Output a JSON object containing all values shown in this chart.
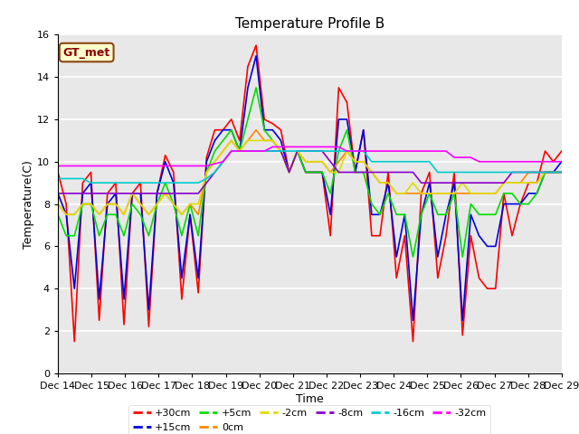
{
  "title": "Temperature Profile B",
  "xlabel": "Time",
  "ylabel": "Temperature(C)",
  "ylim": [
    0,
    16
  ],
  "xlim": [
    0,
    15
  ],
  "x_tick_labels": [
    "Dec 14",
    "Dec 15",
    "Dec 16",
    "Dec 17",
    "Dec 18",
    "Dec 19",
    "Dec 20",
    "Dec 21",
    "Dec 22",
    "Dec 23",
    "Dec 24",
    "Dec 25",
    "Dec 26",
    "Dec 27",
    "Dec 28",
    "Dec 29"
  ],
  "annotation_text": "GT_met",
  "background_color": "#e8e8e8",
  "legend_order": [
    "+30cm",
    "+15cm",
    "+5cm",
    "0cm",
    "-2cm",
    "-8cm",
    "-16cm",
    "-32cm"
  ],
  "series": {
    "+30cm": {
      "color": "#ff0000",
      "lw": 1.2,
      "y": [
        9.5,
        8.0,
        1.5,
        9.0,
        9.5,
        2.5,
        8.5,
        9.0,
        2.3,
        8.5,
        9.0,
        2.2,
        8.5,
        10.3,
        9.5,
        3.5,
        7.5,
        3.8,
        10.2,
        11.5,
        11.5,
        12.0,
        11.0,
        14.5,
        15.5,
        12.0,
        11.8,
        11.5,
        9.5,
        10.5,
        9.5,
        9.5,
        9.5,
        6.5,
        13.5,
        12.8,
        9.5,
        11.5,
        6.5,
        6.5,
        9.5,
        4.5,
        6.5,
        1.5,
        8.5,
        9.5,
        4.5,
        6.5,
        9.5,
        1.8,
        6.5,
        4.5,
        4.0,
        4.0,
        8.5,
        6.5,
        8.0,
        9.0,
        9.0,
        10.5,
        10.0,
        10.5
      ]
    },
    "+15cm": {
      "color": "#0000dd",
      "lw": 1.2,
      "y": [
        8.5,
        7.5,
        4.0,
        8.5,
        9.0,
        3.5,
        8.0,
        8.5,
        3.5,
        8.5,
        8.5,
        3.0,
        8.5,
        10.0,
        9.0,
        4.5,
        7.5,
        4.5,
        10.0,
        11.0,
        11.5,
        11.5,
        10.5,
        13.5,
        15.0,
        11.5,
        11.5,
        11.0,
        9.5,
        10.5,
        9.5,
        9.5,
        9.5,
        7.5,
        12.0,
        12.0,
        9.5,
        11.5,
        7.5,
        7.5,
        9.0,
        5.5,
        7.5,
        2.5,
        7.5,
        9.0,
        5.5,
        7.5,
        9.0,
        2.5,
        7.5,
        6.5,
        6.0,
        6.0,
        8.0,
        8.0,
        8.0,
        8.5,
        8.5,
        9.5,
        9.5,
        10.0
      ]
    },
    "+5cm": {
      "color": "#00dd00",
      "lw": 1.2,
      "y": [
        7.5,
        6.5,
        6.5,
        8.0,
        8.0,
        6.5,
        7.5,
        7.5,
        6.5,
        8.0,
        7.5,
        6.5,
        8.0,
        9.0,
        8.0,
        6.5,
        8.0,
        6.5,
        9.5,
        10.5,
        11.0,
        11.5,
        10.5,
        12.0,
        13.5,
        11.5,
        11.0,
        10.5,
        9.5,
        10.5,
        9.5,
        9.5,
        9.5,
        8.5,
        10.5,
        11.5,
        9.5,
        9.5,
        8.0,
        7.5,
        8.5,
        7.5,
        7.5,
        5.5,
        7.5,
        8.5,
        7.5,
        7.5,
        8.5,
        5.5,
        8.0,
        7.5,
        7.5,
        7.5,
        8.5,
        8.5,
        8.0,
        8.0,
        8.5,
        9.5,
        9.5,
        9.5
      ]
    },
    "0cm": {
      "color": "#ff8800",
      "lw": 1.2,
      "y": [
        8.0,
        7.5,
        7.5,
        8.0,
        8.0,
        7.5,
        8.0,
        8.0,
        7.5,
        8.5,
        8.0,
        7.5,
        8.0,
        8.5,
        8.0,
        7.5,
        8.0,
        7.5,
        9.5,
        10.0,
        10.5,
        11.0,
        10.5,
        11.0,
        11.5,
        11.0,
        11.0,
        10.5,
        9.5,
        10.5,
        10.0,
        10.0,
        10.0,
        9.5,
        10.0,
        10.5,
        10.0,
        10.0,
        9.5,
        9.0,
        9.0,
        8.5,
        8.5,
        8.5,
        8.5,
        8.5,
        8.5,
        8.5,
        8.5,
        8.5,
        8.5,
        8.5,
        8.5,
        8.5,
        9.0,
        9.0,
        9.0,
        9.5,
        9.5,
        9.5,
        9.5,
        9.5
      ]
    },
    "-2cm": {
      "color": "#dddd00",
      "lw": 1.2,
      "y": [
        8.0,
        7.5,
        7.5,
        8.0,
        8.0,
        7.5,
        8.0,
        8.0,
        7.5,
        8.5,
        8.0,
        7.5,
        8.0,
        8.5,
        8.0,
        7.5,
        8.0,
        8.0,
        9.5,
        10.0,
        10.5,
        11.0,
        10.5,
        11.0,
        11.0,
        11.0,
        11.0,
        10.5,
        9.5,
        10.5,
        10.0,
        10.0,
        10.0,
        9.5,
        9.5,
        10.5,
        10.0,
        10.0,
        9.5,
        9.0,
        9.0,
        8.5,
        8.5,
        9.0,
        8.5,
        8.5,
        8.5,
        8.5,
        8.5,
        9.0,
        8.5,
        8.5,
        8.5,
        8.5,
        9.0,
        9.0,
        9.0,
        9.0,
        9.0,
        9.5,
        9.5,
        9.5
      ]
    },
    "-8cm": {
      "color": "#8800cc",
      "lw": 1.2,
      "y": [
        8.5,
        8.5,
        8.5,
        8.5,
        8.5,
        8.5,
        8.5,
        8.5,
        8.5,
        8.5,
        8.5,
        8.5,
        8.5,
        8.5,
        8.5,
        8.5,
        8.5,
        8.5,
        9.0,
        9.5,
        10.0,
        10.5,
        10.5,
        10.5,
        10.5,
        10.5,
        10.5,
        10.5,
        9.5,
        10.5,
        10.5,
        10.5,
        10.5,
        10.0,
        9.5,
        9.5,
        9.5,
        9.5,
        9.5,
        9.5,
        9.5,
        9.5,
        9.5,
        9.5,
        9.0,
        9.0,
        9.0,
        9.0,
        9.0,
        9.0,
        9.0,
        9.0,
        9.0,
        9.0,
        9.0,
        9.5,
        9.5,
        9.5,
        9.5,
        9.5,
        9.5,
        9.5
      ]
    },
    "-16cm": {
      "color": "#00cccc",
      "lw": 1.2,
      "y": [
        9.2,
        9.2,
        9.2,
        9.2,
        9.0,
        9.0,
        9.0,
        9.0,
        9.0,
        9.0,
        9.0,
        9.0,
        9.0,
        9.0,
        9.0,
        9.0,
        9.0,
        9.0,
        9.2,
        9.5,
        10.0,
        10.5,
        10.5,
        10.5,
        10.5,
        10.5,
        10.5,
        10.5,
        10.5,
        10.5,
        10.5,
        10.5,
        10.5,
        10.5,
        10.5,
        10.5,
        10.5,
        10.5,
        10.0,
        10.0,
        10.0,
        10.0,
        10.0,
        10.0,
        10.0,
        10.0,
        9.5,
        9.5,
        9.5,
        9.5,
        9.5,
        9.5,
        9.5,
        9.5,
        9.5,
        9.5,
        9.5,
        9.5,
        9.5,
        9.5,
        9.5,
        9.5
      ]
    },
    "-32cm": {
      "color": "#ff00ff",
      "lw": 1.2,
      "y": [
        9.8,
        9.8,
        9.8,
        9.8,
        9.8,
        9.8,
        9.8,
        9.8,
        9.8,
        9.8,
        9.8,
        9.8,
        9.8,
        9.8,
        9.8,
        9.8,
        9.8,
        9.8,
        9.8,
        9.9,
        10.0,
        10.5,
        10.5,
        10.5,
        10.5,
        10.5,
        10.7,
        10.7,
        10.7,
        10.7,
        10.7,
        10.7,
        10.7,
        10.7,
        10.7,
        10.5,
        10.5,
        10.5,
        10.5,
        10.5,
        10.5,
        10.5,
        10.5,
        10.5,
        10.5,
        10.5,
        10.5,
        10.5,
        10.2,
        10.2,
        10.2,
        10.0,
        10.0,
        10.0,
        10.0,
        10.0,
        10.0,
        10.0,
        10.0,
        10.0,
        10.0,
        10.0
      ]
    }
  }
}
